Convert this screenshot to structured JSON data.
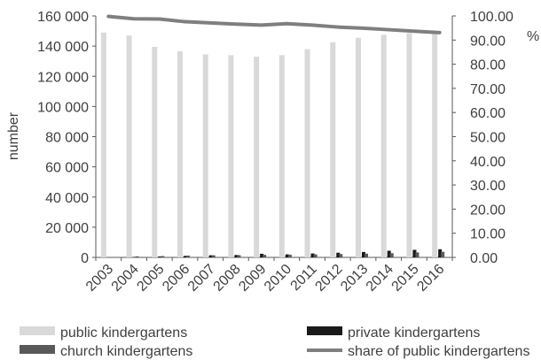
{
  "chart_data": {
    "type": "bar",
    "categories": [
      "2003",
      "2004",
      "2005",
      "2006",
      "2007",
      "2008",
      "2009",
      "2010",
      "2011",
      "2012",
      "2013",
      "2014",
      "2015",
      "2016"
    ],
    "series": [
      {
        "name": "public kindergartens",
        "kind": "bar",
        "axis": "left",
        "color": "#d9d9d9",
        "values": [
          149000,
          147000,
          139500,
          136500,
          134500,
          134000,
          133000,
          134000,
          138000,
          142500,
          145500,
          147500,
          148500,
          149000
        ]
      },
      {
        "name": "private kindergartens",
        "kind": "bar",
        "axis": "left",
        "color": "#1a1a1a",
        "values": [
          0,
          300,
          600,
          1000,
          1400,
          1600,
          2400,
          2000,
          2600,
          3100,
          3600,
          4400,
          5000,
          5400
        ]
      },
      {
        "name": "church kindergartens",
        "kind": "bar",
        "axis": "left",
        "color": "#595959",
        "values": [
          0,
          700,
          900,
          1200,
          1400,
          1500,
          1700,
          1800,
          2000,
          2200,
          2500,
          2800,
          3300,
          3700
        ]
      },
      {
        "name": "share of public kindergartens",
        "kind": "line",
        "axis": "right",
        "color": "#7f7f7f",
        "values": [
          99.8,
          98.8,
          98.7,
          97.6,
          97.1,
          96.6,
          96.2,
          96.8,
          96.2,
          95.4,
          94.9,
          94.3,
          93.7,
          93.1
        ]
      }
    ],
    "y_left": {
      "label": "number",
      "min": 0,
      "max": 160000,
      "ticks": [
        "0",
        "20 000",
        "40 000",
        "60 000",
        "80 000",
        "100 000",
        "120 000",
        "140 000",
        "160 000"
      ]
    },
    "y_right": {
      "label": "%",
      "min": 0,
      "max": 100,
      "ticks": [
        "0.00",
        "10.00",
        "20.00",
        "30.00",
        "40.00",
        "50.00",
        "60.00",
        "70.00",
        "80.00",
        "90.00",
        "100.00"
      ]
    },
    "legend_position": "bottom",
    "grid": false
  }
}
